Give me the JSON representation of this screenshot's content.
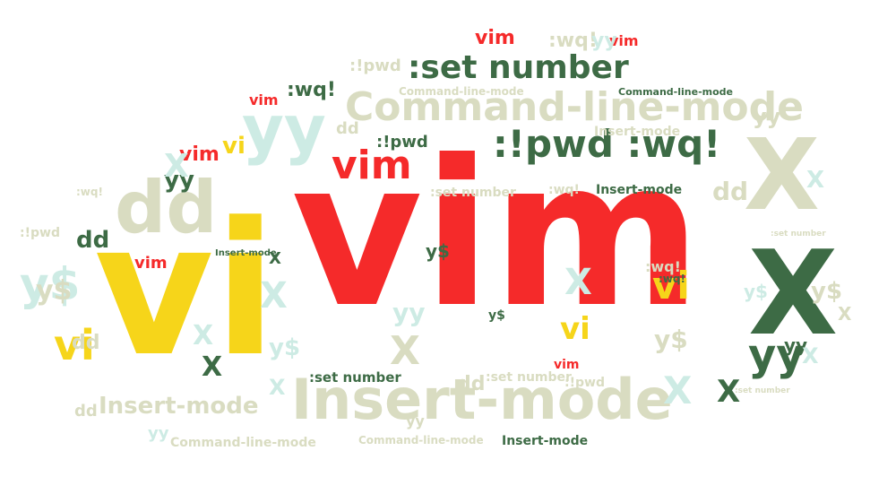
{
  "palette": {
    "red": "#f52a2a",
    "yellow": "#f6d51a",
    "dark_green": "#3d6b45",
    "khaki": "#d9dcc1",
    "mint": "#cdebe4",
    "light_mint": "#dff3ee"
  },
  "words": [
    {
      "text": "vim",
      "color": "red"
    },
    {
      "text": "vi",
      "color": "yellow"
    },
    {
      "text": "Insert-mode",
      "color": "khaki"
    },
    {
      "text": "Command-line-mode",
      "color": "khaki"
    },
    {
      "text": ":set number",
      "color": "dark_green"
    },
    {
      "text": ":!pwd :wq!",
      "color": "dark_green"
    },
    {
      "text": "X",
      "color": "dark_green"
    },
    {
      "text": "X",
      "color": "khaki"
    },
    {
      "text": "dd",
      "color": "khaki"
    },
    {
      "text": "yy",
      "color": "mint"
    },
    {
      "text": "yy",
      "color": "dark_green"
    },
    {
      "text": "y$",
      "color": "mint"
    },
    {
      "text": "vim",
      "color": "red"
    },
    {
      "text": "vi",
      "color": "yellow"
    },
    {
      "text": "vi",
      "color": "yellow"
    },
    {
      "text": "vi",
      "color": "yellow"
    },
    {
      "text": "vi",
      "color": "yellow"
    },
    {
      "text": "vim",
      "color": "red"
    },
    {
      "text": "vim",
      "color": "red"
    },
    {
      "text": "vim",
      "color": "red"
    },
    {
      "text": "vim",
      "color": "red"
    },
    {
      "text": "vim",
      "color": "red"
    },
    {
      "text": "vim",
      "color": "red"
    },
    {
      "text": "Command-line-mode",
      "color": "dark_green"
    },
    {
      "text": "Command-line-mode",
      "color": "khaki"
    },
    {
      "text": "Command-line-mode",
      "color": "khaki"
    },
    {
      "text": "Command-line-mode",
      "color": "khaki"
    },
    {
      "text": "Insert-mode",
      "color": "dark_green"
    },
    {
      "text": "Insert-mode",
      "color": "khaki"
    },
    {
      "text": "Insert-mode",
      "color": "dark_green"
    },
    {
      "text": "Insert-mode",
      "color": "dark_green"
    },
    {
      "text": "Insert-mode",
      "color": "khaki"
    },
    {
      "text": ":set number",
      "color": "dark_green"
    },
    {
      "text": ":set number",
      "color": "khaki"
    },
    {
      "text": ":set number",
      "color": "khaki"
    },
    {
      "text": ":set number",
      "color": "khaki"
    },
    {
      "text": ":set number",
      "color": "khaki"
    },
    {
      "text": ":!pwd",
      "color": "dark_green"
    },
    {
      "text": ":!pwd",
      "color": "khaki"
    },
    {
      "text": ":!pwd",
      "color": "khaki"
    },
    {
      "text": ":!pwd",
      "color": "khaki"
    },
    {
      "text": ":wq!",
      "color": "dark_green"
    },
    {
      "text": ":wq!",
      "color": "khaki"
    },
    {
      "text": ":wq!",
      "color": "khaki"
    },
    {
      "text": ":wq!",
      "color": "khaki"
    },
    {
      "text": ":wq!",
      "color": "khaki"
    },
    {
      "text": ":wq!",
      "color": "dark_green"
    },
    {
      "text": "yy",
      "color": "khaki"
    },
    {
      "text": "yy",
      "color": "mint"
    },
    {
      "text": "yy",
      "color": "dark_green"
    },
    {
      "text": "yy",
      "color": "khaki"
    },
    {
      "text": "yy",
      "color": "mint"
    },
    {
      "text": "yy",
      "color": "dark_green"
    },
    {
      "text": "yy",
      "color": "mint"
    },
    {
      "text": "dd",
      "color": "khaki"
    },
    {
      "text": "dd",
      "color": "khaki"
    },
    {
      "text": "dd",
      "color": "khaki"
    },
    {
      "text": "dd",
      "color": "khaki"
    },
    {
      "text": "dd",
      "color": "dark_green"
    },
    {
      "text": "dd",
      "color": "khaki"
    },
    {
      "text": "y$",
      "color": "khaki"
    },
    {
      "text": "y$",
      "color": "mint"
    },
    {
      "text": "y$",
      "color": "khaki"
    },
    {
      "text": "y$",
      "color": "dark_green"
    },
    {
      "text": "y$",
      "color": "dark_green"
    },
    {
      "text": "y$",
      "color": "mint"
    },
    {
      "text": "y$",
      "color": "khaki"
    },
    {
      "text": "X",
      "color": "dark_green"
    },
    {
      "text": "X",
      "color": "mint"
    },
    {
      "text": "X",
      "color": "mint"
    },
    {
      "text": "X",
      "color": "dark_green"
    },
    {
      "text": "X",
      "color": "khaki"
    },
    {
      "text": "X",
      "color": "mint"
    },
    {
      "text": "X",
      "color": "mint"
    },
    {
      "text": "X",
      "color": "mint"
    },
    {
      "text": "X",
      "color": "dark_green"
    },
    {
      "text": "X",
      "color": "mint"
    },
    {
      "text": "X",
      "color": "mint"
    },
    {
      "text": "X",
      "color": "mint"
    },
    {
      "text": "X",
      "color": "khaki"
    }
  ]
}
